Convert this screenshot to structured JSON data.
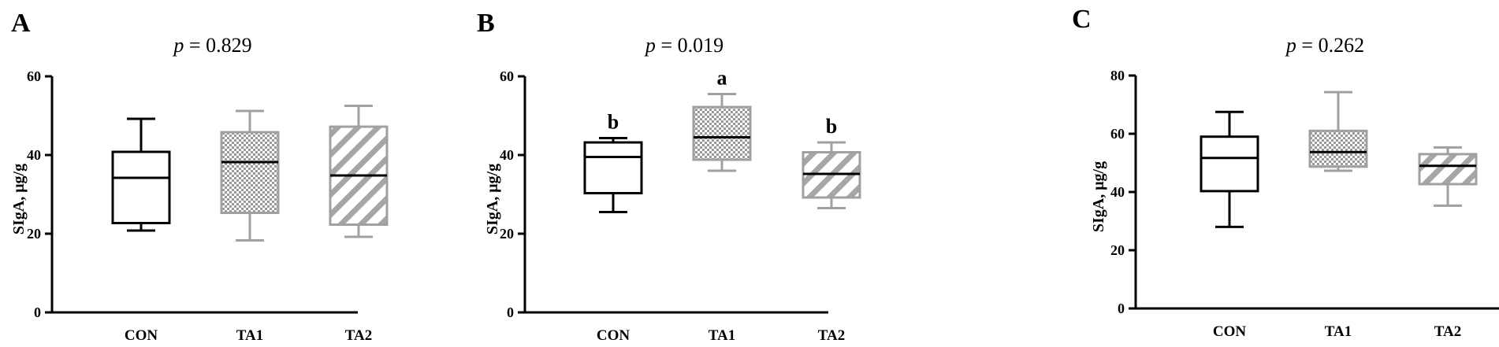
{
  "chart_data": [
    {
      "type": "box",
      "panel": "A",
      "p_label": "p",
      "p_value": "= 0.829",
      "ylabel": "SIgA, μg/g",
      "ylim": [
        0,
        60
      ],
      "yticks": [
        "0",
        "20",
        "40",
        "60"
      ],
      "categories": [
        "CON",
        "TA1",
        "TA2"
      ],
      "boxes": [
        {
          "min": 20.8,
          "q1": 22.7,
          "median": 34.2,
          "q3": 40.8,
          "max": 49.2,
          "style": "plain",
          "color": "#000000"
        },
        {
          "min": 18.3,
          "q1": 25.3,
          "median": 38.2,
          "q3": 45.8,
          "max": 51.2,
          "style": "checker",
          "color": "#a0a0a0"
        },
        {
          "min": 19.2,
          "q1": 22.3,
          "median": 34.8,
          "q3": 47.2,
          "max": 52.5,
          "style": "hatch",
          "color": "#a0a0a0"
        }
      ],
      "significance": [
        "",
        "",
        ""
      ]
    },
    {
      "type": "box",
      "panel": "B",
      "p_label": "p",
      "p_value": "= 0.019",
      "ylabel": "SIgA, μg/g",
      "ylim": [
        0,
        60
      ],
      "yticks": [
        "0",
        "20",
        "40",
        "60"
      ],
      "categories": [
        "CON",
        "TA1",
        "TA2"
      ],
      "boxes": [
        {
          "min": 25.5,
          "q1": 30.3,
          "median": 39.5,
          "q3": 43.2,
          "max": 44.3,
          "style": "plain",
          "color": "#000000"
        },
        {
          "min": 36.0,
          "q1": 38.8,
          "median": 44.5,
          "q3": 52.2,
          "max": 55.5,
          "style": "checker",
          "color": "#a0a0a0"
        },
        {
          "min": 26.5,
          "q1": 29.2,
          "median": 35.2,
          "q3": 40.7,
          "max": 43.2,
          "style": "hatch",
          "color": "#a0a0a0"
        }
      ],
      "significance": [
        "b",
        "a",
        "b"
      ]
    },
    {
      "type": "box",
      "panel": "C",
      "p_label": "p",
      "p_value": "= 0.262",
      "ylabel": "SIgA, μg/g",
      "ylim": [
        0,
        80
      ],
      "yticks": [
        "0",
        "20",
        "40",
        "60",
        "80"
      ],
      "categories": [
        "CON",
        "TA1",
        "TA2"
      ],
      "boxes": [
        {
          "min": 28.0,
          "q1": 40.3,
          "median": 51.7,
          "q3": 59.0,
          "max": 67.5,
          "style": "plain",
          "color": "#000000"
        },
        {
          "min": 47.3,
          "q1": 48.7,
          "median": 53.7,
          "q3": 61.0,
          "max": 74.3,
          "style": "checker",
          "color": "#a0a0a0"
        },
        {
          "min": 35.3,
          "q1": 42.7,
          "median": 49.0,
          "q3": 53.0,
          "max": 55.3,
          "style": "hatch",
          "color": "#a0a0a0"
        }
      ],
      "significance": [
        "",
        "",
        ""
      ]
    }
  ]
}
